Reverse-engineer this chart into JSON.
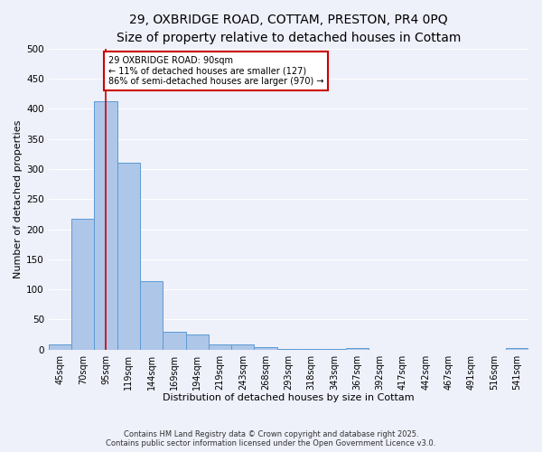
{
  "title_line1": "29, OXBRIDGE ROAD, COTTAM, PRESTON, PR4 0PQ",
  "title_line2": "Size of property relative to detached houses in Cottam",
  "xlabel": "Distribution of detached houses by size in Cottam",
  "ylabel": "Number of detached properties",
  "categories": [
    "45sqm",
    "70sqm",
    "95sqm",
    "119sqm",
    "144sqm",
    "169sqm",
    "194sqm",
    "219sqm",
    "243sqm",
    "268sqm",
    "293sqm",
    "318sqm",
    "343sqm",
    "367sqm",
    "392sqm",
    "417sqm",
    "442sqm",
    "467sqm",
    "491sqm",
    "516sqm",
    "541sqm"
  ],
  "values": [
    8,
    218,
    413,
    311,
    114,
    30,
    25,
    8,
    8,
    4,
    1,
    1,
    1,
    3,
    0,
    0,
    0,
    0,
    0,
    0,
    3
  ],
  "bar_color": "#aec6e8",
  "bar_edge_color": "#5b9bd5",
  "red_line_x": 2.0,
  "annotation_text": "29 OXBRIDGE ROAD: 90sqm\n← 11% of detached houses are smaller (127)\n86% of semi-detached houses are larger (970) →",
  "annotation_box_color": "#ffffff",
  "annotation_box_edge": "#cc0000",
  "footer_line1": "Contains HM Land Registry data © Crown copyright and database right 2025.",
  "footer_line2": "Contains public sector information licensed under the Open Government Licence v3.0.",
  "ylim": [
    0,
    500
  ],
  "yticks": [
    0,
    50,
    100,
    150,
    200,
    250,
    300,
    350,
    400,
    450,
    500
  ],
  "background_color": "#eef0fa",
  "fig_background_color": "#eef0fa",
  "grid_color": "#ffffff",
  "title_fontsize": 10,
  "subtitle_fontsize": 9,
  "axis_label_fontsize": 8,
  "tick_fontsize": 7
}
